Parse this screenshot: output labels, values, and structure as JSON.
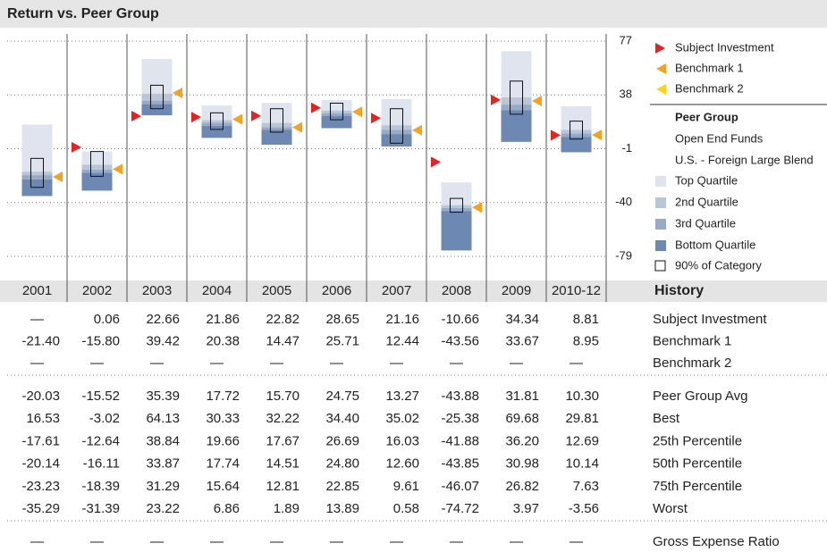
{
  "chart_data": {
    "type": "peer_range",
    "title": "Return vs. Peer Group",
    "categories": [
      "2001",
      "2002",
      "2003",
      "2004",
      "2005",
      "2006",
      "2007",
      "2008",
      "2009",
      "2010-12"
    ],
    "ylim": [
      -79,
      77
    ],
    "yticks": [
      77,
      38,
      -1,
      -40,
      -79
    ],
    "grid": true,
    "table_title": "History",
    "series": [
      {
        "name": "Subject Investment",
        "color": "#e62222",
        "values": [
          null,
          0.06,
          22.66,
          21.86,
          22.82,
          28.65,
          21.16,
          -10.66,
          34.34,
          8.81
        ],
        "value_labels": [
          "—",
          "0.06",
          "22.66",
          "21.86",
          "22.82",
          "28.65",
          "21.16",
          "-10.66",
          "34.34",
          "8.81"
        ]
      },
      {
        "name": "Benchmark 1",
        "color": "#f5a21f",
        "values": [
          -21.4,
          -15.8,
          39.42,
          20.38,
          14.47,
          25.71,
          12.44,
          -43.56,
          33.67,
          8.95
        ],
        "value_labels": [
          "-21.40",
          "-15.80",
          "39.42",
          "20.38",
          "14.47",
          "25.71",
          "12.44",
          "-43.56",
          "33.67",
          "8.95"
        ]
      },
      {
        "name": "Benchmark 2",
        "color": "#fbd31e",
        "values": [
          null,
          null,
          null,
          null,
          null,
          null,
          null,
          null,
          null,
          null
        ],
        "value_labels": [
          "—",
          "—",
          "—",
          "—",
          "—",
          "—",
          "—",
          "—",
          "—",
          "—"
        ]
      }
    ],
    "peer_group": {
      "name": "Peer Group",
      "universe": "Open End Funds",
      "category": "U.S. - Foreign Large Blend",
      "quartiles": [
        {
          "name": "Top Quartile",
          "color": "#dfe4ee"
        },
        {
          "name": "2nd Quartile",
          "color": "#b9c6da"
        },
        {
          "name": "3rd Quartile",
          "color": "#97abc9"
        },
        {
          "name": "Bottom Quartile",
          "color": "#6d89b3"
        }
      ],
      "stats": [
        {
          "name": "Peer Group Avg",
          "values": [
            -20.03,
            -15.52,
            35.39,
            17.72,
            15.7,
            24.75,
            13.27,
            -43.88,
            31.81,
            10.3
          ],
          "value_labels": [
            "-20.03",
            "-15.52",
            "35.39",
            "17.72",
            "15.70",
            "24.75",
            "13.27",
            "-43.88",
            "31.81",
            "10.30"
          ]
        },
        {
          "name": "Best",
          "values": [
            16.53,
            -3.02,
            64.13,
            30.33,
            32.22,
            34.4,
            35.02,
            -25.38,
            69.68,
            29.81
          ],
          "value_labels": [
            "16.53",
            "-3.02",
            "64.13",
            "30.33",
            "32.22",
            "34.40",
            "35.02",
            "-25.38",
            "69.68",
            "29.81"
          ]
        },
        {
          "name": "25th Percentile",
          "values": [
            -17.61,
            -12.64,
            38.84,
            19.66,
            17.67,
            26.69,
            16.03,
            -41.88,
            36.2,
            12.69
          ],
          "value_labels": [
            "-17.61",
            "-12.64",
            "38.84",
            "19.66",
            "17.67",
            "26.69",
            "16.03",
            "-41.88",
            "36.20",
            "12.69"
          ]
        },
        {
          "name": "50th Percentile",
          "values": [
            -20.14,
            -16.11,
            33.87,
            17.74,
            14.51,
            24.8,
            12.6,
            -43.85,
            30.98,
            10.14
          ],
          "value_labels": [
            "-20.14",
            "-16.11",
            "33.87",
            "17.74",
            "14.51",
            "24.80",
            "12.60",
            "-43.85",
            "30.98",
            "10.14"
          ]
        },
        {
          "name": "75th Percentile",
          "values": [
            -23.23,
            -18.39,
            31.29,
            15.64,
            12.81,
            22.85,
            9.61,
            -46.07,
            26.82,
            7.63
          ],
          "value_labels": [
            "-23.23",
            "-18.39",
            "31.29",
            "15.64",
            "12.81",
            "22.85",
            "9.61",
            "-46.07",
            "26.82",
            "7.63"
          ]
        },
        {
          "name": "Worst",
          "values": [
            -35.29,
            -31.39,
            23.22,
            6.86,
            1.89,
            13.89,
            0.58,
            -74.72,
            3.97,
            -3.56
          ],
          "value_labels": [
            "-35.29",
            "-31.39",
            "23.22",
            "6.86",
            "1.89",
            "13.89",
            "0.58",
            "-74.72",
            "3.97",
            "-3.56"
          ]
        }
      ],
      "category_90": {
        "name": "90% of Category",
        "high": [
          -8,
          -3,
          45,
          25,
          28,
          32,
          28,
          -37,
          48,
          19
        ],
        "low": [
          -29,
          -21,
          28,
          13,
          11,
          20,
          3,
          -47,
          24,
          6
        ]
      }
    },
    "expense": {
      "name": "Gross Expense Ratio",
      "values": [
        null,
        null,
        null,
        null,
        null,
        null,
        null,
        null,
        null,
        null
      ],
      "value_labels": [
        "—",
        "—",
        "—",
        "—",
        "—",
        "—",
        "—",
        "—",
        "—",
        "—"
      ]
    }
  }
}
